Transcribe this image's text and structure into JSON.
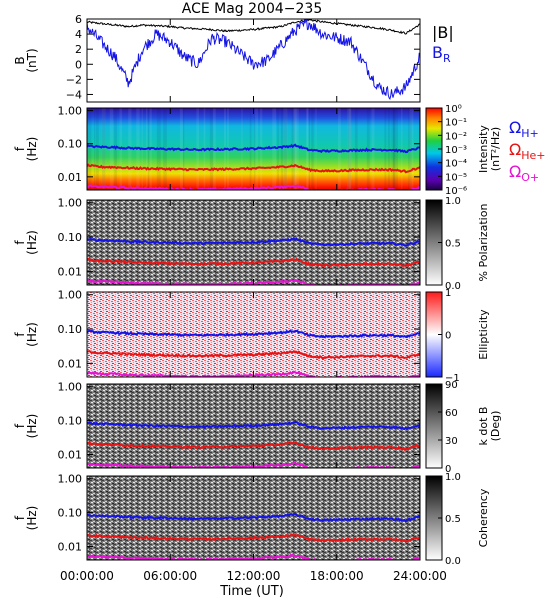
{
  "title": "ACE Mag 2004−235",
  "x_axis": {
    "label": "Time (UT)",
    "ticks": [
      "00:00:00",
      "06:00:00",
      "12:00:00",
      "18:00:00",
      "24:00:00"
    ]
  },
  "legends": {
    "top": [
      {
        "text": "|B|",
        "sub": "",
        "color": "#000000"
      },
      {
        "text": "B",
        "sub": "R",
        "color": "#1414e6"
      }
    ],
    "gyro": [
      {
        "text": "Ω",
        "sub": "H+",
        "color": "#1414e6"
      },
      {
        "text": "Ω",
        "sub": "He+",
        "color": "#e61414"
      },
      {
        "text": "Ω",
        "sub": "O+",
        "color": "#e614d2"
      }
    ]
  },
  "colors": {
    "b_mag": "#000000",
    "b_r": "#1414e6",
    "h_plus": "#1414e6",
    "he_plus": "#e61414",
    "o_plus": "#e614d2"
  },
  "chart_data": [
    {
      "type": "line",
      "ylabel": "B",
      "yunit": "(nT)",
      "ylim": [
        -5,
        6
      ],
      "yticks": [
        "6",
        "4",
        "2",
        "0",
        "−2",
        "−4"
      ],
      "ytick_values": [
        6,
        4,
        2,
        0,
        -2,
        -4
      ],
      "x": [
        0,
        1,
        2,
        3,
        4,
        5,
        6,
        7,
        8,
        9,
        10,
        11,
        12,
        13,
        14,
        15,
        16,
        17,
        18,
        19,
        20,
        21,
        22,
        23,
        24
      ],
      "series": [
        {
          "name": "|B|",
          "values": [
            5.6,
            5.4,
            5.2,
            5.0,
            5.2,
            5.1,
            5.0,
            4.8,
            4.7,
            4.6,
            4.4,
            4.5,
            4.6,
            4.8,
            5.0,
            5.6,
            5.9,
            5.6,
            5.4,
            5.2,
            5.0,
            4.8,
            4.5,
            4.1,
            5.3
          ]
        },
        {
          "name": "B_R",
          "values": [
            5.0,
            3.0,
            1.0,
            -2.5,
            2.0,
            4.0,
            3.0,
            1.0,
            0.0,
            3.5,
            3.0,
            1.5,
            0.0,
            0.5,
            2.5,
            4.5,
            5.5,
            4.0,
            3.5,
            3.0,
            0.0,
            -3.0,
            -4.0,
            -3.0,
            1.0
          ]
        }
      ]
    },
    {
      "type": "heatmap",
      "quantity": "Intensity",
      "ylabel": "f",
      "yunit": "(Hz)",
      "yscale": "log",
      "ylim": [
        0.004,
        1.2
      ],
      "yticks": [
        "1.00",
        "0.10",
        "0.01"
      ],
      "ytick_values": [
        1.0,
        0.1,
        0.01
      ],
      "colorbar": {
        "label": "Intensity",
        "unit": "(nT²/Hz)",
        "scale": "log",
        "range": [
          1e-06,
          1
        ],
        "ticks": [
          "10⁰",
          "10⁻¹",
          "10⁻²",
          "10⁻³",
          "10⁻⁴",
          "10⁻⁵",
          "10⁻⁶"
        ]
      },
      "x": [
        0,
        1,
        2,
        3,
        4,
        5,
        6,
        7,
        8,
        9,
        10,
        11,
        12,
        13,
        14,
        15,
        16,
        17,
        18,
        19,
        20,
        21,
        22,
        23,
        24
      ],
      "series": [
        {
          "name": "ΩH+",
          "values": [
            0.085,
            0.08,
            0.078,
            0.074,
            0.072,
            0.07,
            0.069,
            0.067,
            0.066,
            0.067,
            0.068,
            0.07,
            0.071,
            0.075,
            0.079,
            0.088,
            0.065,
            0.06,
            0.061,
            0.063,
            0.065,
            0.066,
            0.065,
            0.058,
            0.075
          ]
        },
        {
          "name": "ΩHe+",
          "values": [
            0.022,
            0.02,
            0.0195,
            0.0185,
            0.018,
            0.0175,
            0.0172,
            0.0168,
            0.0165,
            0.0168,
            0.017,
            0.0175,
            0.0178,
            0.0188,
            0.0198,
            0.022,
            0.0163,
            0.015,
            0.0152,
            0.0158,
            0.0163,
            0.0165,
            0.0163,
            0.0145,
            0.0188
          ]
        },
        {
          "name": "ΩO+",
          "values": [
            0.0053,
            0.005,
            0.0049,
            0.0046,
            0.0045,
            0.0044,
            0.0043,
            0.0042,
            0.0041,
            0.0042,
            0.0042,
            0.0044,
            0.0044,
            0.0047,
            0.0049,
            0.0055,
            0.0041,
            0.0037,
            0.0038,
            0.0039,
            0.0041,
            0.0041,
            0.0041,
            0.0036,
            0.0047
          ]
        }
      ]
    },
    {
      "type": "heatmap",
      "quantity": "% Polarization",
      "ylabel": "f",
      "yunit": "(Hz)",
      "yscale": "log",
      "ylim": [
        0.004,
        1.2
      ],
      "yticks": [
        "1.00",
        "0.10",
        "0.01"
      ],
      "ytick_values": [
        1.0,
        0.1,
        0.01
      ],
      "colorbar": {
        "label": "% Polarization",
        "unit": "",
        "scale": "linear",
        "range": [
          0,
          1
        ],
        "ticks": [
          "1.0",
          "0.5",
          "0.0"
        ]
      }
    },
    {
      "type": "heatmap",
      "quantity": "Ellipticity",
      "ylabel": "f",
      "yunit": "(Hz)",
      "yscale": "log",
      "ylim": [
        0.004,
        1.2
      ],
      "yticks": [
        "1.00",
        "0.10",
        "0.01"
      ],
      "ytick_values": [
        1.0,
        0.1,
        0.01
      ],
      "colorbar": {
        "label": "Ellipticity",
        "unit": "",
        "scale": "linear",
        "range": [
          -1,
          1
        ],
        "ticks": [
          "1",
          "0",
          "−1"
        ]
      }
    },
    {
      "type": "heatmap",
      "quantity": "k dot B",
      "ylabel": "f",
      "yunit": "(Hz)",
      "yscale": "log",
      "ylim": [
        0.004,
        1.2
      ],
      "yticks": [
        "1.00",
        "0.10",
        "0.01"
      ],
      "ytick_values": [
        1.0,
        0.1,
        0.01
      ],
      "colorbar": {
        "label": "k dot B",
        "unit": "(Deg)",
        "scale": "linear",
        "range": [
          0,
          90
        ],
        "ticks": [
          "90",
          "60",
          "30",
          "0"
        ]
      }
    },
    {
      "type": "heatmap",
      "quantity": "Coherency",
      "ylabel": "f",
      "yunit": "(Hz)",
      "yscale": "log",
      "ylim": [
        0.004,
        1.2
      ],
      "yticks": [
        "1.00",
        "0.10",
        "0.01"
      ],
      "ytick_values": [
        1.0,
        0.1,
        0.01
      ],
      "colorbar": {
        "label": "Coherency",
        "unit": "",
        "scale": "linear",
        "range": [
          0,
          1
        ],
        "ticks": [
          "1.0",
          "0.5",
          "0.0"
        ]
      }
    }
  ]
}
